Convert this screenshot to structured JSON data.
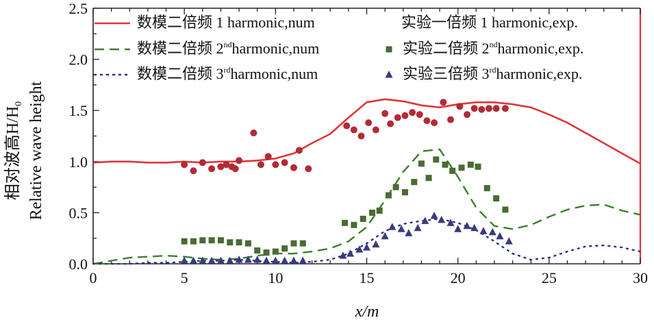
{
  "chart_data": {
    "type": "line",
    "title": "",
    "xlabel": "x/m",
    "ylabel_cn": "相对波高H/H",
    "ylabel_sub": "0",
    "ylabel_en": "Relative wave height",
    "xlim": [
      0,
      30
    ],
    "ylim": [
      0,
      2.5
    ],
    "xticks": [
      "0",
      "5",
      "10",
      "15",
      "20",
      "25",
      "30"
    ],
    "yticks": [
      "0.0",
      "0.5",
      "1.0",
      "1.5",
      "2.0",
      "2.5"
    ],
    "grid": false,
    "legend_position": "top",
    "series": [
      {
        "name": "数模二倍频 1 harmonic,num",
        "kind": "line",
        "style": "solid",
        "color": "#e0353a",
        "x": [
          0,
          1,
          2,
          3,
          4,
          5,
          6,
          7,
          8,
          9,
          10,
          11,
          12,
          13,
          14,
          15,
          16,
          17,
          18,
          19,
          20,
          21,
          22,
          23,
          24,
          25,
          26,
          27,
          28,
          29,
          30
        ],
        "y": [
          0.99,
          1.0,
          1.0,
          0.99,
          0.99,
          1.0,
          0.99,
          1.0,
          1.0,
          1.01,
          1.03,
          1.08,
          1.18,
          1.27,
          1.43,
          1.58,
          1.61,
          1.59,
          1.55,
          1.53,
          1.56,
          1.58,
          1.58,
          1.56,
          1.53,
          1.46,
          1.38,
          1.28,
          1.18,
          1.08,
          0.98
        ]
      },
      {
        "name": "实验一倍频1  harmonic,exp.",
        "kind": "marker",
        "marker": "circle",
        "color": "#b22b35",
        "x": [
          5,
          5.5,
          6,
          6.5,
          7,
          7.3,
          7.6,
          7.8,
          8,
          8.8,
          9.2,
          9.6,
          10,
          10.5,
          11,
          11.3,
          11.8,
          13.9,
          14.3,
          14.7,
          15.1,
          15.5,
          16,
          16.3,
          16.7,
          17.1,
          17.5,
          17.9,
          18.3,
          18.7,
          19.2,
          19.6,
          20.1,
          20.5,
          20.9,
          21.3,
          21.7,
          22.1,
          22.6
        ],
        "y": [
          0.97,
          0.91,
          0.99,
          0.93,
          0.95,
          0.97,
          0.95,
          0.93,
          1.01,
          1.28,
          0.97,
          1.05,
          0.97,
          0.99,
          0.94,
          1.11,
          0.93,
          1.35,
          1.31,
          1.25,
          1.38,
          1.31,
          1.47,
          1.37,
          1.43,
          1.45,
          1.48,
          1.46,
          1.4,
          1.38,
          1.58,
          1.41,
          1.54,
          1.46,
          1.52,
          1.51,
          1.52,
          1.52,
          1.52
        ]
      },
      {
        "name": "数模二倍频 2nd harmonic,num",
        "kind": "line",
        "style": "dashed",
        "color": "#3b7f2b",
        "x": [
          0,
          1,
          2,
          3,
          4,
          5,
          6,
          7,
          8,
          9,
          10,
          11,
          12,
          13,
          14,
          15,
          16,
          17,
          18,
          19,
          20,
          21,
          22,
          23,
          24,
          25,
          26,
          27,
          28,
          29,
          30
        ],
        "y": [
          0.0,
          0.03,
          0.06,
          0.07,
          0.08,
          0.07,
          0.05,
          0.04,
          0.05,
          0.08,
          0.1,
          0.1,
          0.12,
          0.15,
          0.22,
          0.36,
          0.62,
          0.9,
          1.1,
          1.12,
          0.85,
          0.55,
          0.37,
          0.34,
          0.38,
          0.46,
          0.53,
          0.57,
          0.58,
          0.52,
          0.48
        ]
      },
      {
        "name": "实验二倍频2nd harmonic,exp.",
        "kind": "marker",
        "marker": "square",
        "color": "#4a6b34",
        "x": [
          5,
          5.5,
          6,
          6.5,
          7,
          7.5,
          8,
          8.5,
          9,
          9.5,
          10,
          10.5,
          11,
          11.5,
          13.8,
          14.3,
          14.8,
          15.3,
          15.7,
          16.2,
          16.6,
          17.1,
          17.6,
          18.0,
          18.4,
          18.8,
          19.3,
          19.7,
          20.2,
          20.7,
          21.1,
          21.6,
          22.1,
          22.6
        ],
        "y": [
          0.22,
          0.22,
          0.23,
          0.23,
          0.23,
          0.21,
          0.21,
          0.2,
          0.13,
          0.11,
          0.12,
          0.15,
          0.2,
          0.2,
          0.4,
          0.38,
          0.44,
          0.5,
          0.52,
          0.67,
          0.75,
          0.7,
          0.8,
          0.98,
          0.84,
          1.02,
          0.97,
          0.91,
          0.94,
          0.97,
          0.95,
          0.74,
          0.64,
          0.53
        ]
      },
      {
        "name": "数模二倍频 3rd harmonic,num",
        "kind": "line",
        "style": "dotted",
        "color": "#2e2f86",
        "x": [
          0,
          1,
          2,
          3,
          4,
          5,
          6,
          7,
          8,
          9,
          10,
          11,
          12,
          13,
          14,
          15,
          16,
          17,
          18,
          19,
          20,
          21,
          22,
          23,
          24,
          25,
          26,
          27,
          28,
          29,
          30
        ],
        "y": [
          0.0,
          0.0,
          0.0,
          0.01,
          0.01,
          0.02,
          0.03,
          0.03,
          0.04,
          0.03,
          0.02,
          0.01,
          0.02,
          0.04,
          0.1,
          0.2,
          0.32,
          0.39,
          0.42,
          0.44,
          0.4,
          0.33,
          0.22,
          0.1,
          0.04,
          0.06,
          0.12,
          0.17,
          0.18,
          0.16,
          0.12
        ]
      },
      {
        "name": "实验三倍频3rd harmonic,exp.",
        "kind": "marker",
        "marker": "triangle",
        "color": "#3a3a80",
        "x": [
          5,
          5.5,
          6,
          6.5,
          7,
          7.5,
          8,
          8.5,
          9,
          9.5,
          10,
          10.5,
          11,
          11.5,
          13.7,
          14.1,
          14.6,
          15.0,
          15.5,
          16.0,
          16.4,
          16.9,
          17.3,
          17.8,
          18.2,
          18.7,
          19.1,
          19.6,
          20.0,
          20.5,
          20.9,
          21.4,
          21.9,
          22.3,
          22.8
        ],
        "y": [
          0.03,
          0.03,
          0.03,
          0.03,
          0.03,
          0.03,
          0.04,
          0.04,
          0.04,
          0.03,
          0.03,
          0.03,
          0.03,
          0.03,
          0.08,
          0.1,
          0.14,
          0.16,
          0.19,
          0.27,
          0.36,
          0.34,
          0.3,
          0.35,
          0.42,
          0.47,
          0.43,
          0.4,
          0.34,
          0.37,
          0.35,
          0.32,
          0.31,
          0.27,
          0.22
        ]
      }
    ],
    "legend": [
      {
        "label_cn": "数模二倍频",
        "num": "1",
        "sup": "",
        "text": "harmonic,num"
      },
      {
        "label_cn": "实验一倍频",
        "num": "1",
        "sup": "",
        "text": "harmonic,exp."
      },
      {
        "label_cn": "数模二倍频",
        "num": "2",
        "sup": "nd",
        "text": "harmonic,num"
      },
      {
        "label_cn": "实验二倍频",
        "num": "2",
        "sup": "nd",
        "text": "harmonic,exp."
      },
      {
        "label_cn": "数模二倍频",
        "num": "3",
        "sup": "rd",
        "text": "harmonic,num"
      },
      {
        "label_cn": "实验三倍频",
        "num": "3",
        "sup": "rd",
        "text": "harmonic,exp."
      }
    ]
  }
}
